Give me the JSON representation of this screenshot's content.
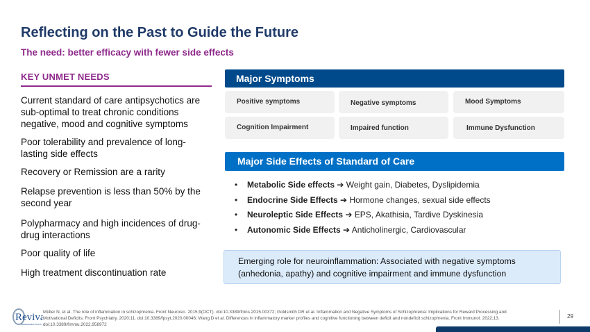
{
  "title": "Reflecting on the Past to Guide the Future",
  "subtitle": "The need: better efficacy with fewer side effects",
  "key_unmet": {
    "heading": "KEY UNMET NEEDS",
    "items": [
      "Current standard of care antipsychotics are sub-optimal to treat chronic conditions negative, mood and cognitive symptoms",
      "Poor tolerability and prevalence of long-lasting side effects",
      "Recovery or Remission are a rarity",
      "Relapse prevention is less than 50% by the second year",
      "Polypharmacy and high incidences of drug-drug interactions",
      "Poor quality of life",
      "High treatment discontinuation rate"
    ]
  },
  "symptoms": {
    "heading": "Major Symptoms",
    "color": "#004a8b",
    "cells": [
      "Positive symptoms",
      "Negative symptoms",
      "Mood Symptoms",
      "Cognition Impairment",
      "Impaired function",
      "Immune Dysfunction"
    ]
  },
  "side_effects": {
    "heading": "Major Side Effects of Standard of Care",
    "color": "#0070c6",
    "items": [
      {
        "label": "Metabolic Side effects",
        "arrow": "➔",
        "detail": "Weight gain, Diabetes, Dyslipidemia"
      },
      {
        "label": "Endocrine Side Effects",
        "arrow": "➔",
        "detail": "Hormone changes, sexual side effects"
      },
      {
        "label": "Neuroleptic Side Effects",
        "arrow": "➔",
        "detail": "EPS, Akathisia, Tardive Dyskinesia"
      },
      {
        "label": "Autonomic Side Effects",
        "arrow": "➔",
        "detail": "Anticholinergic, Cardiovascular"
      }
    ]
  },
  "info": "Emerging role for neuroinflammation: Associated with negative symptoms (anhedonia, apathy) and cognitive impairment and immune dysfunction",
  "references": "Müller N, et al. The role of inflammation in schizophrenia. Front Neurosci. 2015;9(OCT). doi:10.3389/fnins.2015.00372; Goldsmith DR et al. Inflammation and Negative Symptoms of Schizophrenia: Implications for Reward Processing and Motivational Deficits; Front Psychiatry. 2020;11. doi:10.3389/fpsyt.2020.00046; Wang D et al. Differences in inflammatory marker profiles and cognitive functioning between deficit and nondeficit schizophrenia. Front Immunol. 2022;13. doi:10.3389/fimmu.2022.958972",
  "logo": {
    "text": "Reviva",
    "sub": "PHARMACEUTICALS"
  },
  "page_number": "29"
}
